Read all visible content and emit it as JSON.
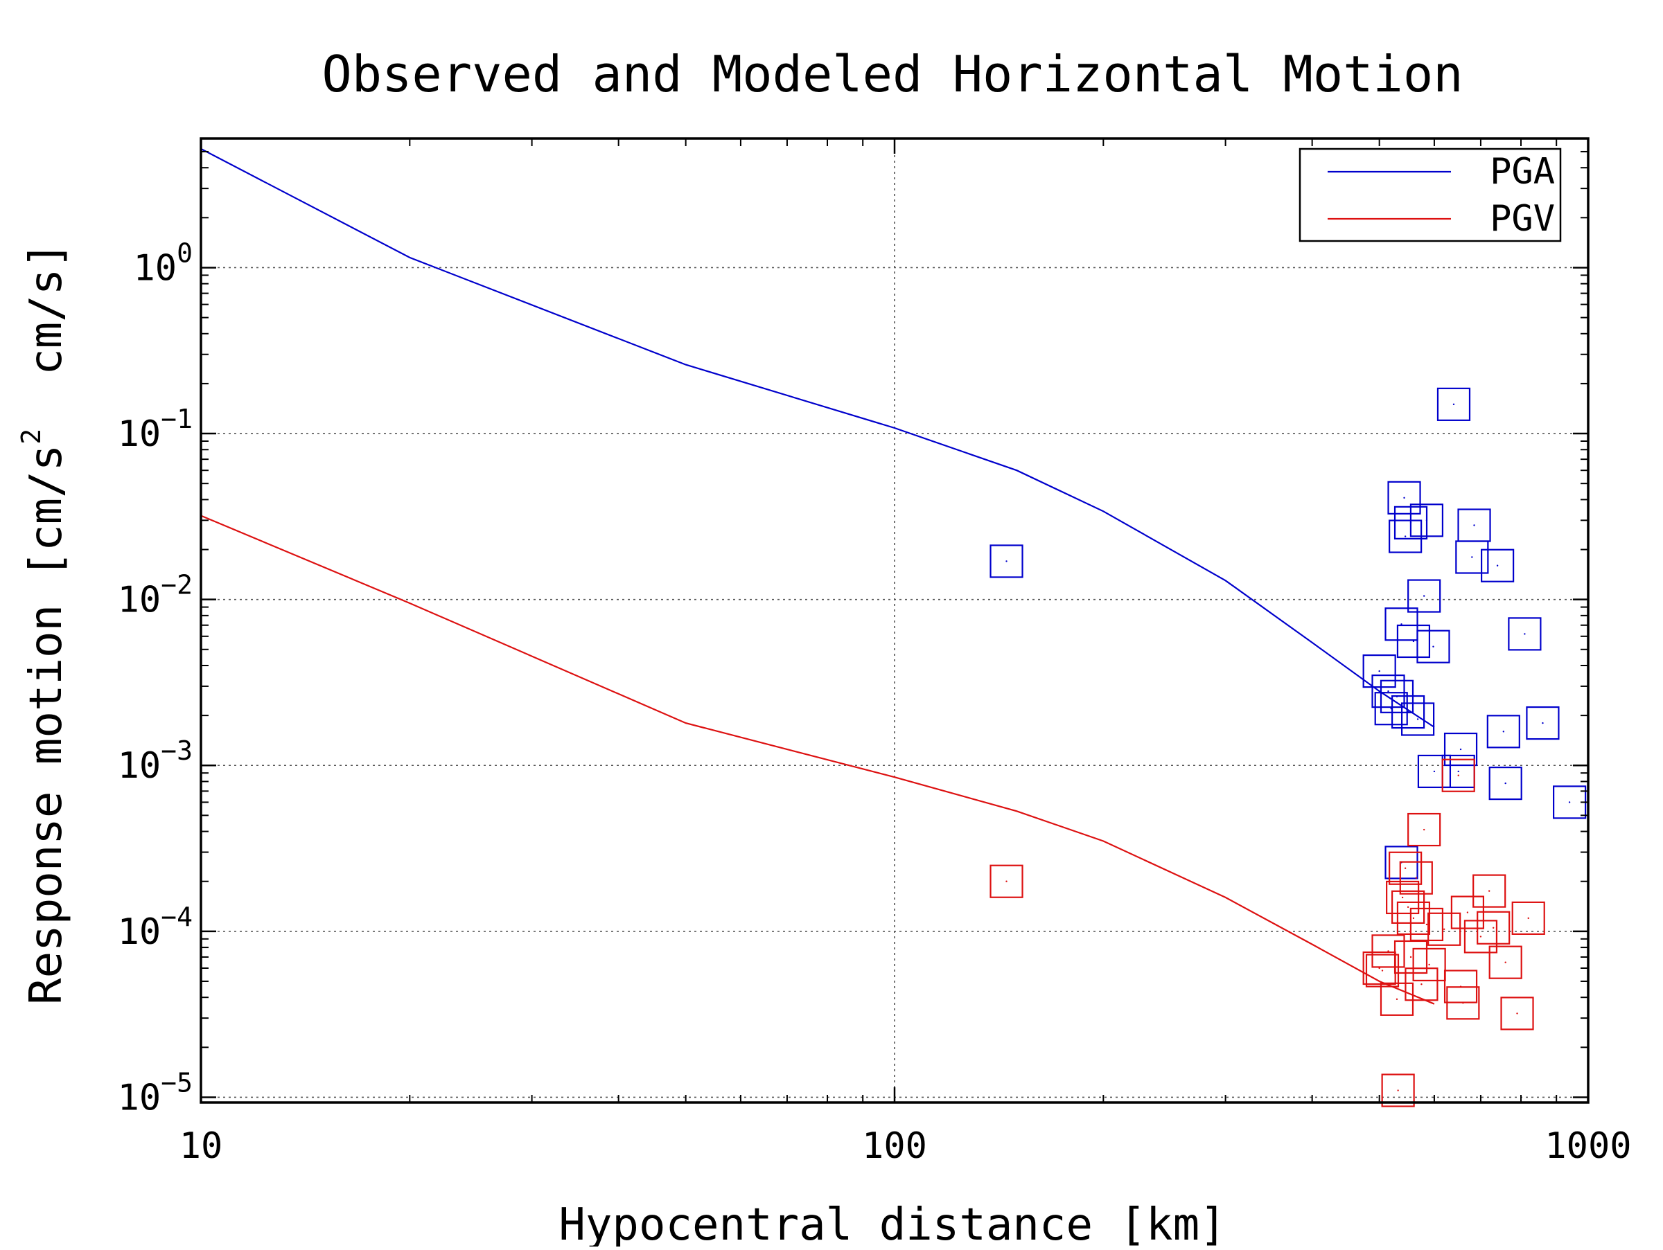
{
  "chart_data": {
    "type": "scatter",
    "title": "Observed and Modeled Horizontal Motion",
    "xlabel": "Hypocentral distance [km]",
    "ylabel": "Response motion [cm/s² cm/s]",
    "ylabel_parts": {
      "before": "Response motion [cm/s",
      "sup": "2",
      "after": "  cm/s]"
    },
    "x_scale": "log",
    "y_scale": "log",
    "xlim": [
      10,
      1000
    ],
    "ylim": [
      9.3e-06,
      6
    ],
    "grid": true,
    "legend_position": "top-right",
    "x_ticks": [
      {
        "value": 10,
        "label": "10"
      },
      {
        "value": 100,
        "label": "100"
      },
      {
        "value": 1000,
        "label": "1000"
      }
    ],
    "y_ticks": [
      {
        "value": 1,
        "base": "10",
        "exp": "0"
      },
      {
        "value": 0.1,
        "base": "10",
        "exp": "−1"
      },
      {
        "value": 0.01,
        "base": "10",
        "exp": "−2"
      },
      {
        "value": 0.001,
        "base": "10",
        "exp": "−3"
      },
      {
        "value": 0.0001,
        "base": "10",
        "exp": "−4"
      },
      {
        "value": 1e-05,
        "base": "10",
        "exp": "−5"
      }
    ],
    "colors": {
      "pga": "#0000cc",
      "pgv": "#dd1111"
    },
    "series": [
      {
        "name": "PGA",
        "color": "#0000cc",
        "line": {
          "x": [
            10,
            20,
            50,
            100,
            150,
            200,
            300,
            400,
            500,
            600
          ],
          "y": [
            5.2,
            1.15,
            0.26,
            0.108,
            0.06,
            0.034,
            0.013,
            0.0055,
            0.0028,
            0.0017
          ]
        },
        "points": {
          "x": [
            145,
            500,
            515,
            520,
            530,
            538,
            538,
            543,
            545,
            550,
            555,
            560,
            568,
            580,
            585,
            598,
            600,
            640,
            650,
            655,
            680,
            685,
            740,
            755,
            760,
            810,
            860,
            940
          ],
          "y": [
            0.017,
            0.0037,
            0.0028,
            0.0022,
            0.0026,
            0.0071,
            0.00026,
            0.041,
            0.024,
            0.0021,
            0.029,
            0.0056,
            0.0019,
            0.0105,
            0.03,
            0.0052,
            0.00092,
            0.15,
            0.00092,
            0.00125,
            0.018,
            0.028,
            0.016,
            0.0016,
            0.00078,
            0.0062,
            0.0018,
            0.0006
          ]
        }
      },
      {
        "name": "PGV",
        "color": "#dd1111",
        "line": {
          "x": [
            10,
            20,
            50,
            100,
            150,
            200,
            300,
            400,
            500,
            600
          ],
          "y": [
            0.032,
            0.0095,
            0.0018,
            0.00085,
            0.00053,
            0.00035,
            0.00016,
            8.35e-05,
            5e-05,
            3.65e-05
          ]
        },
        "points": {
          "x": [
            145,
            500,
            505,
            515,
            530,
            532,
            540,
            545,
            550,
            555,
            560,
            565,
            575,
            580,
            585,
            590,
            620,
            650,
            655,
            660,
            670,
            700,
            720,
            730,
            760,
            790,
            820
          ],
          "y": [
            0.0002,
            6e-05,
            5.8e-05,
            7.6e-05,
            3.9e-05,
            1.1e-05,
            0.00016,
            0.00024,
            0.00014,
            7e-05,
            0.00012,
            0.00021,
            4.8e-05,
            0.00041,
            0.00011,
            6.3e-05,
            0.000103,
            0.00087,
            4.65e-05,
            3.7e-05,
            0.00013,
            9.3e-05,
            0.000175,
            0.000105,
            6.5e-05,
            3.2e-05,
            0.00012
          ]
        }
      }
    ]
  }
}
